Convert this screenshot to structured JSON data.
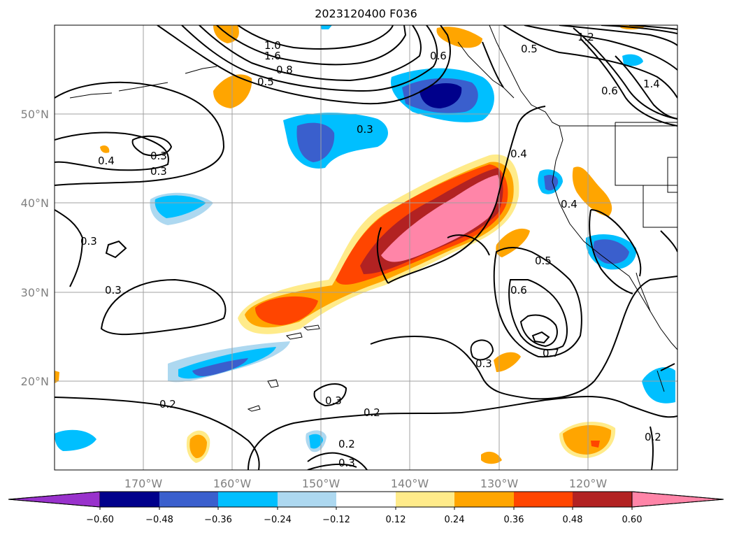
{
  "title": "2023120400 F036",
  "lat_labels": [
    "50°N",
    "40°N",
    "30°N",
    "20°N"
  ],
  "lon_labels": [
    "170°W",
    "160°W",
    "150°W",
    "140°W",
    "130°W",
    "120°W"
  ],
  "contour_labels": [
    "1.2",
    "1.6",
    "1.4",
    "1.0",
    "0.8",
    "0.5",
    "0.6",
    "0.4",
    "0.3",
    "0.2",
    "0.7"
  ],
  "colorbar": {
    "ticks": [
      "−0.60",
      "−0.48",
      "−0.36",
      "−0.24",
      "−0.12",
      "0.12",
      "0.24",
      "0.36",
      "0.48",
      "0.60"
    ],
    "colors": [
      "#9932cc",
      "#00008b",
      "#3a5fcd",
      "#00bfff",
      "#add8f0",
      "#ffffff",
      "#ffeb8a",
      "#ffa500",
      "#ff4500",
      "#b22222",
      "#ff85a8"
    ]
  }
}
